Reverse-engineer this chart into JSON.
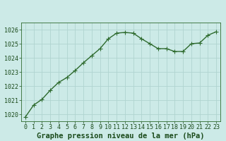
{
  "x": [
    0,
    1,
    2,
    3,
    4,
    5,
    6,
    7,
    8,
    9,
    10,
    11,
    12,
    13,
    14,
    15,
    16,
    17,
    18,
    19,
    20,
    21,
    22,
    23
  ],
  "y": [
    1019.8,
    1020.65,
    1021.05,
    1021.7,
    1022.25,
    1022.6,
    1023.1,
    1023.65,
    1024.15,
    1024.65,
    1025.35,
    1025.75,
    1025.8,
    1025.75,
    1025.35,
    1025.0,
    1024.65,
    1024.65,
    1024.45,
    1024.45,
    1025.0,
    1025.05,
    1025.6,
    1025.85
  ],
  "xlim": [
    -0.5,
    23.5
  ],
  "ylim": [
    1019.5,
    1026.5
  ],
  "yticks": [
    1020,
    1021,
    1022,
    1023,
    1024,
    1025,
    1026
  ],
  "xticks": [
    0,
    1,
    2,
    3,
    4,
    5,
    6,
    7,
    8,
    9,
    10,
    11,
    12,
    13,
    14,
    15,
    16,
    17,
    18,
    19,
    20,
    21,
    22,
    23
  ],
  "xlabel": "Graphe pression niveau de la mer (hPa)",
  "line_color": "#2d6a2d",
  "marker_color": "#2d6a2d",
  "bg_color": "#cceae7",
  "grid_color": "#b0d4d0",
  "xlabel_color": "#1a4a1a",
  "xlabel_fontsize": 7.5,
  "tick_fontsize": 6,
  "marker_size": 2.5,
  "line_width": 1.0
}
